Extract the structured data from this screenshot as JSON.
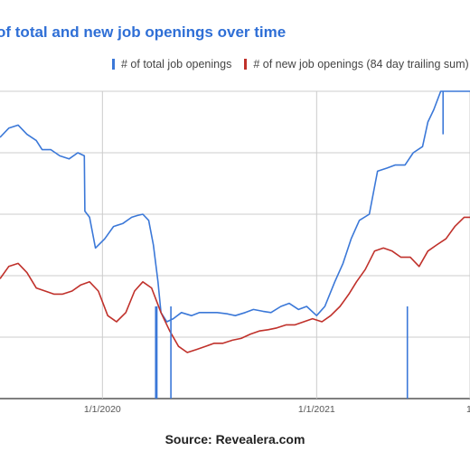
{
  "title": "of total and new job openings over time",
  "source": "Source: Revealera.com",
  "colors": {
    "total": "#3b78d8",
    "new": "#c0312b",
    "grid": "#cccccc",
    "title": "#2f6fd6"
  },
  "chart_data": {
    "type": "line",
    "title": "of total and new job openings over time",
    "xlabel": "",
    "ylabel": "",
    "x_ticks": [
      "1/1/2020",
      "1/1/2021",
      "1"
    ],
    "xlim": [
      "2019-07-10",
      "2021-09-20"
    ],
    "ylim": [
      0,
      5
    ],
    "y_gridlines": [
      0,
      1,
      2,
      3,
      4,
      5
    ],
    "grid": true,
    "legend_position": "top",
    "series": [
      {
        "name": "# of total job openings",
        "color": "#3b78d8",
        "x": [
          "2019-07-10",
          "2019-07-25",
          "2019-08-10",
          "2019-08-25",
          "2019-09-10",
          "2019-09-20",
          "2019-10-05",
          "2019-10-20",
          "2019-11-05",
          "2019-11-20",
          "2019-12-01",
          "2019-12-02",
          "2019-12-10",
          "2019-12-20",
          "2020-01-05",
          "2020-01-20",
          "2020-02-05",
          "2020-02-20",
          "2020-03-01",
          "2020-03-10",
          "2020-03-20",
          "2020-03-28",
          "2020-04-05",
          "2020-04-10",
          "2020-04-20",
          "2020-05-01",
          "2020-05-15",
          "2020-06-01",
          "2020-06-15",
          "2020-07-01",
          "2020-07-15",
          "2020-08-01",
          "2020-08-15",
          "2020-09-01",
          "2020-09-15",
          "2020-10-01",
          "2020-10-15",
          "2020-11-01",
          "2020-11-15",
          "2020-12-01",
          "2020-12-15",
          "2021-01-01",
          "2021-01-15",
          "2021-02-01",
          "2021-02-15",
          "2021-03-01",
          "2021-03-15",
          "2021-04-01",
          "2021-04-15",
          "2021-05-01",
          "2021-05-15",
          "2021-06-01",
          "2021-06-15",
          "2021-07-01",
          "2021-07-10",
          "2021-07-20",
          "2021-08-01",
          "2021-08-15",
          "2021-09-01",
          "2021-09-20"
        ],
        "values": [
          4.25,
          4.4,
          4.45,
          4.3,
          4.2,
          4.05,
          4.05,
          3.95,
          3.9,
          4.0,
          3.95,
          3.05,
          2.95,
          2.45,
          2.6,
          2.8,
          2.85,
          2.95,
          2.98,
          3.0,
          2.9,
          2.5,
          1.9,
          1.4,
          1.25,
          1.3,
          1.4,
          1.35,
          1.4,
          1.4,
          1.4,
          1.38,
          1.35,
          1.4,
          1.45,
          1.42,
          1.4,
          1.5,
          1.55,
          1.45,
          1.5,
          1.35,
          1.5,
          1.9,
          2.2,
          2.6,
          2.9,
          3.0,
          3.7,
          3.75,
          3.8,
          3.8,
          4.0,
          4.1,
          4.5,
          4.7,
          5.0,
          5.0,
          5.0,
          5.0
        ]
      },
      {
        "name": "# of new job openings (84 day trailing sum)",
        "color": "#c0312b",
        "x": [
          "2019-07-10",
          "2019-07-25",
          "2019-08-10",
          "2019-08-25",
          "2019-09-10",
          "2019-09-25",
          "2019-10-10",
          "2019-10-25",
          "2019-11-10",
          "2019-11-25",
          "2019-12-10",
          "2019-12-25",
          "2020-01-10",
          "2020-01-25",
          "2020-02-10",
          "2020-02-25",
          "2020-03-10",
          "2020-03-25",
          "2020-04-10",
          "2020-04-25",
          "2020-05-10",
          "2020-05-25",
          "2020-06-10",
          "2020-06-25",
          "2020-07-10",
          "2020-07-25",
          "2020-08-10",
          "2020-08-25",
          "2020-09-10",
          "2020-09-25",
          "2020-10-10",
          "2020-10-25",
          "2020-11-10",
          "2020-11-25",
          "2020-12-10",
          "2020-12-25",
          "2021-01-10",
          "2021-01-25",
          "2021-02-10",
          "2021-02-25",
          "2021-03-10",
          "2021-03-25",
          "2021-04-10",
          "2021-04-25",
          "2021-05-10",
          "2021-05-25",
          "2021-06-10",
          "2021-06-25",
          "2021-07-10",
          "2021-07-25",
          "2021-08-10",
          "2021-08-25",
          "2021-09-10",
          "2021-09-20"
        ],
        "values": [
          1.95,
          2.15,
          2.2,
          2.05,
          1.8,
          1.75,
          1.7,
          1.7,
          1.75,
          1.85,
          1.9,
          1.75,
          1.35,
          1.25,
          1.4,
          1.75,
          1.9,
          1.8,
          1.4,
          1.1,
          0.85,
          0.75,
          0.8,
          0.85,
          0.9,
          0.9,
          0.95,
          0.98,
          1.05,
          1.1,
          1.12,
          1.15,
          1.2,
          1.2,
          1.25,
          1.3,
          1.25,
          1.35,
          1.5,
          1.7,
          1.9,
          2.1,
          2.4,
          2.45,
          2.4,
          2.3,
          2.3,
          2.15,
          2.4,
          2.5,
          2.6,
          2.8,
          2.95,
          2.95
        ]
      }
    ],
    "dropouts": [
      {
        "series": "# of total job openings",
        "x": [
          "2020-04-01",
          "2020-04-03",
          "2020-04-27",
          "2021-06-05",
          "2021-08-05"
        ],
        "values": [
          0,
          0,
          0,
          0,
          4.3
        ]
      }
    ]
  }
}
